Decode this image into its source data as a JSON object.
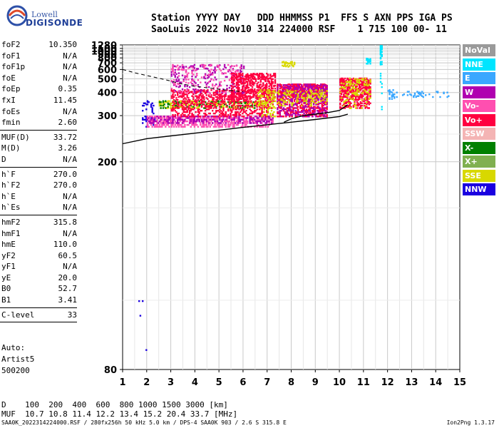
{
  "logo": {
    "top": "Lowell",
    "bottom": "DIGISONDE"
  },
  "header": {
    "line1": "Station YYYY DAY   DDD HHMMSS P1  FFS S AXN PPS IGA PS",
    "line2": "SaoLuis 2022 Nov10 314 224000 RSF    1 715 100 00- 11"
  },
  "params": [
    {
      "name": "foF2",
      "value": "10.350"
    },
    {
      "name": "foF1",
      "value": "N/A"
    },
    {
      "name": "foF1p",
      "value": "N/A"
    },
    {
      "name": "foE",
      "value": "N/A"
    },
    {
      "name": "foEp",
      "value": "0.35"
    },
    {
      "name": "fxI",
      "value": "11.45"
    },
    {
      "name": "foEs",
      "value": "N/A"
    },
    {
      "name": "fmin",
      "value": "2.60"
    },
    {
      "sep": true
    },
    {
      "name": "MUF(D)",
      "value": "33.72"
    },
    {
      "name": "M(D)",
      "value": "3.26"
    },
    {
      "name": "D",
      "value": "N/A"
    },
    {
      "sep": true
    },
    {
      "name": "h`F",
      "value": "270.0"
    },
    {
      "name": "h`F2",
      "value": "270.0"
    },
    {
      "name": "h`E",
      "value": "N/A"
    },
    {
      "name": "h`Es",
      "value": "N/A"
    },
    {
      "sep": true
    },
    {
      "name": "hmF2",
      "value": "315.8"
    },
    {
      "name": "hmF1",
      "value": "N/A"
    },
    {
      "name": "hmE",
      "value": "110.0"
    },
    {
      "name": "yF2",
      "value": "60.5"
    },
    {
      "name": "yF1",
      "value": "N/A"
    },
    {
      "name": "yE",
      "value": "20.0"
    },
    {
      "name": "B0",
      "value": "52.7"
    },
    {
      "name": "B1",
      "value": "3.41"
    },
    {
      "sep": true
    },
    {
      "name": "C-level",
      "value": "33"
    },
    {
      "sep": true
    }
  ],
  "auto": {
    "line1": "Auto:",
    "line2": "Artist5",
    "line3": "500200"
  },
  "legend": [
    {
      "label": "NoVal",
      "bg": "#9a9a9a",
      "fg": "#ffffff"
    },
    {
      "label": "NNE",
      "bg": "#00e5ff",
      "fg": "#ffffff"
    },
    {
      "label": "E",
      "bg": "#3aa7ff",
      "fg": "#ffffff"
    },
    {
      "label": "W",
      "bg": "#b000b0",
      "fg": "#ffffff"
    },
    {
      "label": "Vo-",
      "bg": "#ff4fb0",
      "fg": "#ffffff"
    },
    {
      "label": "Vo+",
      "bg": "#ff0040",
      "fg": "#ffffff"
    },
    {
      "label": "SSW",
      "bg": "#f4b4b4",
      "fg": "#ffffff"
    },
    {
      "label": "X-",
      "bg": "#008000",
      "fg": "#ffffff"
    },
    {
      "label": "X+",
      "bg": "#80b050",
      "fg": "#ffffff"
    },
    {
      "label": "SSE",
      "bg": "#d8d800",
      "fg": "#ffffff"
    },
    {
      "label": "NNW",
      "bg": "#1a00e0",
      "fg": "#ffffff"
    }
  ],
  "muf_table": {
    "line1": "D    100  200  400  600  800 1000 1500 3000 [km]",
    "line2": "MUF  10.7 10.8 11.4 12.2 13.4 15.2 20.4 33.7 [MHz]"
  },
  "footer": {
    "left": "SAA0K_2022314224000.RSF / 280fx256h 50 kHz 5.0 km / DPS-4 SAA0K 903 / 2.6 S 315.8 E",
    "right": "Ion2Png 1.3.17"
  },
  "chart_data": {
    "type": "scatter",
    "title": "",
    "xlabel": "",
    "ylabel": "",
    "xlim": [
      1,
      15
    ],
    "ylim": [
      80,
      1280
    ],
    "x_ticks": [
      1,
      2,
      3,
      4,
      5,
      6,
      7,
      8,
      9,
      10,
      11,
      12,
      13,
      14,
      15
    ],
    "y_ticks": [
      80,
      200,
      300,
      400,
      500,
      600,
      700,
      800,
      900,
      1000,
      1100,
      1280
    ],
    "y_scale": "reciprocal",
    "grid": true,
    "legend_position": "right",
    "trace_virtual": [
      [
        1.0,
        230
      ],
      [
        2.0,
        240
      ],
      [
        3.0,
        246
      ],
      [
        4.0,
        252
      ],
      [
        5.0,
        259
      ],
      [
        6.0,
        266
      ],
      [
        7.0,
        273
      ],
      [
        8.0,
        280
      ],
      [
        9.0,
        288
      ],
      [
        10.0,
        297
      ],
      [
        10.35,
        305
      ]
    ],
    "trace_profile": [
      [
        7.7,
        280
      ],
      [
        8.0,
        290
      ],
      [
        8.5,
        300
      ],
      [
        9.0,
        305
      ],
      [
        9.5,
        310
      ],
      [
        10.0,
        318
      ],
      [
        10.35,
        340
      ]
    ],
    "trace_dashed": [
      [
        1.0,
        600
      ],
      [
        1.5,
        560
      ],
      [
        2.0,
        530
      ],
      [
        2.5,
        505
      ],
      [
        3.0,
        480
      ],
      [
        3.5,
        455
      ],
      [
        4.0,
        440
      ],
      [
        5.0,
        420
      ],
      [
        5.6,
        410
      ],
      [
        6.0,
        405
      ]
    ],
    "echo_bands": [
      {
        "x0": 1.1,
        "x1": 2.1,
        "y0": 80,
        "y1": 100,
        "color": "#1a00e0",
        "density": 0.08
      },
      {
        "x0": 1.8,
        "x1": 2.3,
        "y0": 270,
        "y1": 360,
        "color": "#1a00e0",
        "density": 0.25
      },
      {
        "x0": 2.0,
        "x1": 7.2,
        "y0": 270,
        "y1": 300,
        "color": "#ff4fb0",
        "density": 0.55
      },
      {
        "x0": 2.0,
        "x1": 7.2,
        "y0": 280,
        "y1": 300,
        "color": "#b000b0",
        "density": 0.35
      },
      {
        "x0": 2.5,
        "x1": 7.2,
        "y0": 330,
        "y1": 360,
        "color": "#d8d800",
        "density": 0.4
      },
      {
        "x0": 2.5,
        "x1": 6.5,
        "y0": 330,
        "y1": 360,
        "color": "#008000",
        "density": 0.15
      },
      {
        "x0": 3.0,
        "x1": 7.2,
        "y0": 300,
        "y1": 420,
        "color": "#ff0040",
        "density": 0.3
      },
      {
        "x0": 3.0,
        "x1": 6.0,
        "y0": 400,
        "y1": 680,
        "color": "#b000b0",
        "density": 0.05
      },
      {
        "x0": 3.0,
        "x1": 6.0,
        "y0": 400,
        "y1": 680,
        "color": "#ff4fb0",
        "density": 0.03
      },
      {
        "x0": 5.5,
        "x1": 7.3,
        "y0": 360,
        "y1": 560,
        "color": "#ff0040",
        "density": 0.28
      },
      {
        "x0": 6.6,
        "x1": 7.3,
        "y0": 300,
        "y1": 420,
        "color": "#d8d800",
        "density": 0.2
      },
      {
        "x0": 7.4,
        "x1": 9.5,
        "y0": 300,
        "y1": 460,
        "color": "#ff0040",
        "density": 0.45
      },
      {
        "x0": 7.4,
        "x1": 9.5,
        "y0": 300,
        "y1": 460,
        "color": "#b000b0",
        "density": 0.2
      },
      {
        "x0": 7.4,
        "x1": 9.5,
        "y0": 340,
        "y1": 420,
        "color": "#d8d800",
        "density": 0.15
      },
      {
        "x0": 7.6,
        "x1": 8.1,
        "y0": 650,
        "y1": 740,
        "color": "#d8d800",
        "density": 0.15
      },
      {
        "x0": 10.0,
        "x1": 11.3,
        "y0": 330,
        "y1": 510,
        "color": "#ff0040",
        "density": 0.45
      },
      {
        "x0": 10.0,
        "x1": 11.3,
        "y0": 330,
        "y1": 510,
        "color": "#d8d800",
        "density": 0.12
      },
      {
        "x0": 11.1,
        "x1": 11.3,
        "y0": 700,
        "y1": 820,
        "color": "#00e5ff",
        "density": 0.2
      },
      {
        "x0": 11.68,
        "x1": 11.78,
        "y0": 320,
        "y1": 1280,
        "color": "#00e5ff",
        "density": 0.12
      },
      {
        "x0": 12.0,
        "x1": 12.3,
        "y0": 370,
        "y1": 420,
        "color": "#3aa7ff",
        "density": 0.3
      },
      {
        "x0": 12.3,
        "x1": 14.8,
        "y0": 380,
        "y1": 410,
        "color": "#3aa7ff",
        "density": 0.12
      }
    ]
  }
}
